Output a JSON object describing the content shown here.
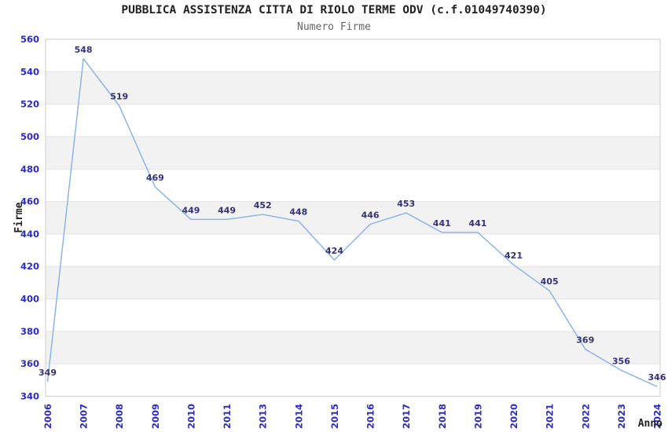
{
  "chart_data": {
    "type": "line",
    "title": "PUBBLICA ASSISTENZA CITTA DI RIOLO TERME ODV (c.f.01049740390)",
    "subtitle": "Numero Firme",
    "xlabel": "Anno",
    "ylabel": "Firme",
    "categories": [
      "2006",
      "2007",
      "2008",
      "2009",
      "2010",
      "2011",
      "2013",
      "2014",
      "2015",
      "2016",
      "2017",
      "2018",
      "2019",
      "2020",
      "2021",
      "2022",
      "2023",
      "2024"
    ],
    "values": [
      349,
      548,
      519,
      469,
      449,
      449,
      452,
      448,
      424,
      446,
      453,
      441,
      441,
      421,
      405,
      369,
      356,
      346
    ],
    "ylim": [
      340,
      560
    ],
    "yticks": [
      340,
      360,
      380,
      400,
      420,
      440,
      460,
      480,
      500,
      520,
      540,
      560
    ],
    "grid": "horizontal-bands-alternating",
    "legend": "none",
    "colors": {
      "line": "#85b1e8",
      "point_label": "#333377",
      "tick_label": "#2a2ad2",
      "band": "#f2f2f2",
      "gridline": "#e3e3e3",
      "plot_border": "#cccccc",
      "title": "#222222",
      "subtitle": "#666666",
      "axis_title": "#222222"
    }
  }
}
